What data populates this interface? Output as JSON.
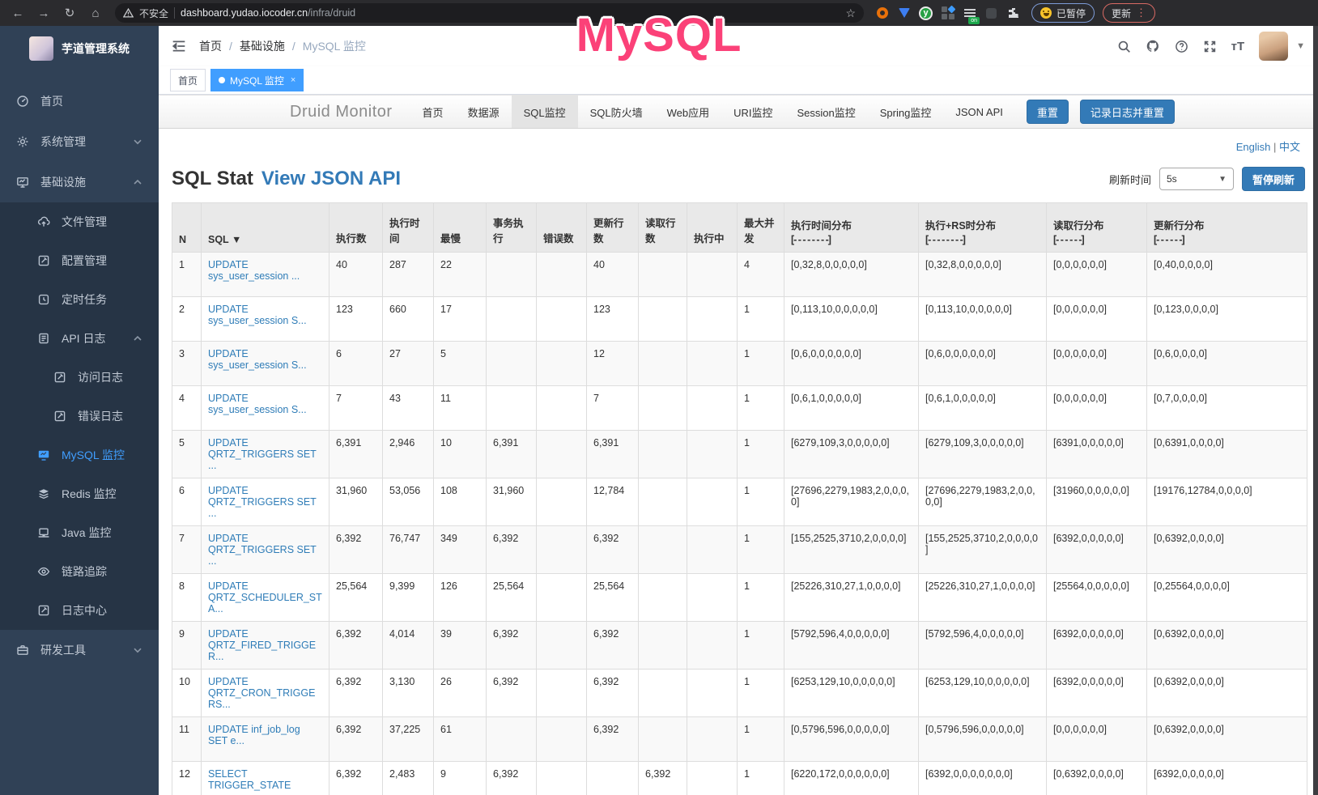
{
  "browser": {
    "security_label": "不安全",
    "url_host": "dashboard.yudao.iocoder.cn",
    "url_path": "/infra/druid",
    "paused_badge": "已暂停",
    "update_button": "更新",
    "on_badge": "on"
  },
  "overlay": {
    "text": "MySQL",
    "color": "#fb4178"
  },
  "sidebar": {
    "title": "芋道管理系统",
    "menu": [
      {
        "label": "首页",
        "icon": "dashboard-icon",
        "level": 0
      },
      {
        "label": "系统管理",
        "icon": "gear-icon",
        "level": 0,
        "chevron": "down"
      },
      {
        "label": "基础设施",
        "icon": "monitor-icon",
        "level": 0,
        "chevron": "up"
      },
      {
        "label": "文件管理",
        "icon": "cloud-upload-icon",
        "level": 1
      },
      {
        "label": "配置管理",
        "icon": "edit-icon",
        "level": 1
      },
      {
        "label": "定时任务",
        "icon": "timer-icon",
        "level": 1
      },
      {
        "label": "API 日志",
        "icon": "log-icon",
        "level": 1,
        "chevron": "up"
      },
      {
        "label": "访问日志",
        "icon": "edit-icon",
        "level": 2
      },
      {
        "label": "错误日志",
        "icon": "edit-icon",
        "level": 2
      },
      {
        "label": "MySQL 监控",
        "icon": "mysql-monitor-icon",
        "level": 1,
        "active": true
      },
      {
        "label": "Redis 监控",
        "icon": "layers-icon",
        "level": 1
      },
      {
        "label": "Java 监控",
        "icon": "java-monitor-icon",
        "level": 1
      },
      {
        "label": "链路追踪",
        "icon": "eye-icon",
        "level": 1
      },
      {
        "label": "日志中心",
        "icon": "edit-icon",
        "level": 1
      },
      {
        "label": "研发工具",
        "icon": "briefcase-icon",
        "level": 0,
        "chevron": "down"
      }
    ]
  },
  "header": {
    "breadcrumb": [
      "首页",
      "基础设施",
      "MySQL 监控"
    ]
  },
  "tags": [
    {
      "label": "首页",
      "active": false,
      "closable": false
    },
    {
      "label": "MySQL 监控",
      "active": true,
      "closable": true
    }
  ],
  "druid": {
    "brand": "Druid Monitor",
    "nav_items": [
      "首页",
      "数据源",
      "SQL监控",
      "SQL防火墙",
      "Web应用",
      "URI监控",
      "Session监控",
      "Spring监控",
      "JSON API"
    ],
    "active_item": "SQL监控",
    "reset_button": "重置",
    "log_reset_button": "记录日志并重置",
    "lang_english": "English",
    "lang_separator": "|",
    "lang_chinese": "中文",
    "page_title": "SQL Stat",
    "view_json_link": "View JSON API",
    "refresh_label": "刷新时间",
    "refresh_value": "5s",
    "pause_button": "暂停刷新"
  },
  "table": {
    "headers": [
      {
        "label": "N"
      },
      {
        "label": "SQL",
        "sort": "▼"
      },
      {
        "label": "执行数"
      },
      {
        "label": "执行时间"
      },
      {
        "label": "最慢"
      },
      {
        "label": "事务执行"
      },
      {
        "label": "错误数"
      },
      {
        "label": "更新行数"
      },
      {
        "label": "读取行数"
      },
      {
        "label": "执行中"
      },
      {
        "label": "最大并发"
      },
      {
        "label": "执行时间分布",
        "sub": "[- - - - - - - -]"
      },
      {
        "label": "执行+RS时分布",
        "sub": "[- - - - - - - -]"
      },
      {
        "label": "读取行分布",
        "sub": "[- - - - - -]"
      },
      {
        "label": "更新行分布",
        "sub": "[- - - - - -]"
      }
    ],
    "rows": [
      [
        "1",
        "UPDATE sys_user_session ...",
        "40",
        "287",
        "22",
        "",
        "",
        "40",
        "",
        "",
        "4",
        "[0,32,8,0,0,0,0,0]",
        "[0,32,8,0,0,0,0,0]",
        "[0,0,0,0,0,0]",
        "[0,40,0,0,0,0]"
      ],
      [
        "2",
        "UPDATE sys_user_session S...",
        "123",
        "660",
        "17",
        "",
        "",
        "123",
        "",
        "",
        "1",
        "[0,113,10,0,0,0,0,0]",
        "[0,113,10,0,0,0,0,0]",
        "[0,0,0,0,0,0]",
        "[0,123,0,0,0,0]"
      ],
      [
        "3",
        "UPDATE sys_user_session S...",
        "6",
        "27",
        "5",
        "",
        "",
        "12",
        "",
        "",
        "1",
        "[0,6,0,0,0,0,0,0]",
        "[0,6,0,0,0,0,0,0]",
        "[0,0,0,0,0,0]",
        "[0,6,0,0,0,0]"
      ],
      [
        "4",
        "UPDATE sys_user_session S...",
        "7",
        "43",
        "11",
        "",
        "",
        "7",
        "",
        "",
        "1",
        "[0,6,1,0,0,0,0,0]",
        "[0,6,1,0,0,0,0,0]",
        "[0,0,0,0,0,0]",
        "[0,7,0,0,0,0]"
      ],
      [
        "5",
        "UPDATE QRTZ_TRIGGERS SET ...",
        "6,391",
        "2,946",
        "10",
        "6,391",
        "",
        "6,391",
        "",
        "",
        "1",
        "[6279,109,3,0,0,0,0,0]",
        "[6279,109,3,0,0,0,0,0]",
        "[6391,0,0,0,0,0]",
        "[0,6391,0,0,0,0]"
      ],
      [
        "6",
        "UPDATE QRTZ_TRIGGERS SET ...",
        "31,960",
        "53,056",
        "108",
        "31,960",
        "",
        "12,784",
        "",
        "",
        "1",
        "[27696,2279,1983,2,0,0,0,0]",
        "[27696,2279,1983,2,0,0,0,0]",
        "[31960,0,0,0,0,0]",
        "[19176,12784,0,0,0,0]"
      ],
      [
        "7",
        "UPDATE QRTZ_TRIGGERS SET ...",
        "6,392",
        "76,747",
        "349",
        "6,392",
        "",
        "6,392",
        "",
        "",
        "1",
        "[155,2525,3710,2,0,0,0,0]",
        "[155,2525,3710,2,0,0,0,0]",
        "[6392,0,0,0,0,0]",
        "[0,6392,0,0,0,0]"
      ],
      [
        "8",
        "UPDATE QRTZ_SCHEDULER_STA...",
        "25,564",
        "9,399",
        "126",
        "25,564",
        "",
        "25,564",
        "",
        "",
        "1",
        "[25226,310,27,1,0,0,0,0]",
        "[25226,310,27,1,0,0,0,0]",
        "[25564,0,0,0,0,0]",
        "[0,25564,0,0,0,0]"
      ],
      [
        "9",
        "UPDATE QRTZ_FIRED_TRIGGER...",
        "6,392",
        "4,014",
        "39",
        "6,392",
        "",
        "6,392",
        "",
        "",
        "1",
        "[5792,596,4,0,0,0,0,0]",
        "[5792,596,4,0,0,0,0,0]",
        "[6392,0,0,0,0,0]",
        "[0,6392,0,0,0,0]"
      ],
      [
        "10",
        "UPDATE QRTZ_CRON_TRIGGERS...",
        "6,392",
        "3,130",
        "26",
        "6,392",
        "",
        "6,392",
        "",
        "",
        "1",
        "[6253,129,10,0,0,0,0,0]",
        "[6253,129,10,0,0,0,0,0]",
        "[6392,0,0,0,0,0]",
        "[0,6392,0,0,0,0]"
      ],
      [
        "11",
        "UPDATE inf_job_log SET e...",
        "6,392",
        "37,225",
        "61",
        "",
        "",
        "6,392",
        "",
        "",
        "1",
        "[0,5796,596,0,0,0,0,0]",
        "[0,5796,596,0,0,0,0,0]",
        "[0,0,0,0,0,0]",
        "[0,6392,0,0,0,0]"
      ],
      [
        "12",
        "SELECT TRIGGER_STATE",
        "6,392",
        "2,483",
        "9",
        "6,392",
        "",
        "",
        "6,392",
        "",
        "1",
        "[6220,172,0,0,0,0,0,0]",
        "[6392,0,0,0,0,0,0,0]",
        "[0,6392,0,0,0,0]",
        "[6392,0,0,0,0,0]"
      ]
    ]
  }
}
